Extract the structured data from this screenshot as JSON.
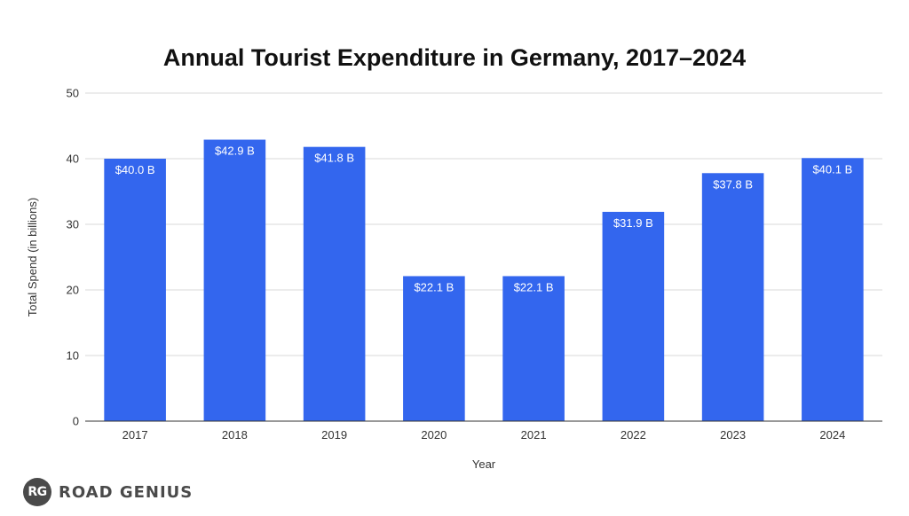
{
  "chart_data": {
    "type": "bar",
    "title": "Annual Tourist Expenditure in Germany, 2017–2024",
    "xlabel": "Year",
    "ylabel": "Total Spend (in billions)",
    "categories": [
      "2017",
      "2018",
      "2019",
      "2020",
      "2021",
      "2022",
      "2023",
      "2024"
    ],
    "values": [
      40.0,
      42.9,
      41.8,
      22.1,
      22.1,
      31.9,
      37.8,
      40.1
    ],
    "data_labels": [
      "$40.0 B",
      "$42.9 B",
      "$41.8 B",
      "$22.1 B",
      "$22.1 B",
      "$31.9 B",
      "$37.8 B",
      "$40.1 B"
    ],
    "ylim": [
      0,
      50
    ],
    "yticks": [
      "0",
      "10",
      "20",
      "30",
      "40",
      "50"
    ],
    "grid": true,
    "legend": "none",
    "bar_color": "#3366ee"
  },
  "branding": {
    "badge": "RG",
    "name": "ROAD GENIUS"
  }
}
